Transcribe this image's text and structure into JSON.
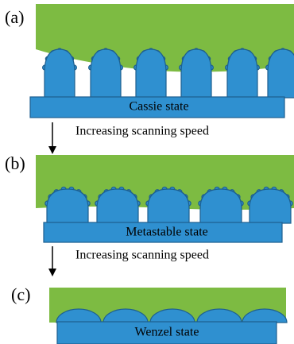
{
  "panels": [
    {
      "label": "(a)",
      "state": "Cassie state"
    },
    {
      "label": "(b)",
      "state": "Metastable state"
    },
    {
      "label": "(c)",
      "state": "Wenzel state"
    }
  ],
  "arrows": [
    {
      "label": "Increasing scanning speed"
    },
    {
      "label": "Increasing scanning speed"
    }
  ]
}
